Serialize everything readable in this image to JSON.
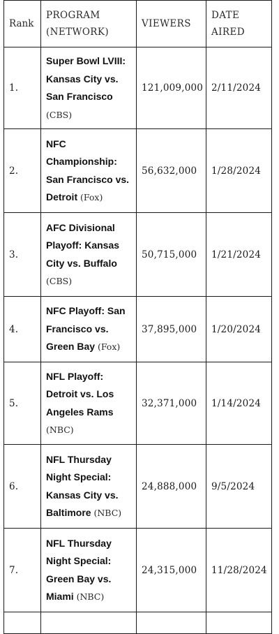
{
  "table": {
    "headers": {
      "rank": "Rank",
      "program": "PROGRAM (NETWORK)",
      "viewers": "VIEWERS",
      "date": "DATE AIRED"
    },
    "rows": [
      {
        "rank": "1.",
        "program": "Super Bowl LVIII: Kansas City vs. San Francisco",
        "network": "(CBS)",
        "viewers": "121,009,000",
        "date": "2/11/2024"
      },
      {
        "rank": "2.",
        "program": "NFC Championship: San Francisco vs. Detroit",
        "network": "(Fox)",
        "viewers": "56,632,000",
        "date": "1/28/2024"
      },
      {
        "rank": "3.",
        "program": "AFC Divisional Playoff: Kansas City vs. Buffalo",
        "network": "(CBS)",
        "viewers": "50,715,000",
        "date": "1/21/2024"
      },
      {
        "rank": "4.",
        "program": "NFC Playoff: San Francisco vs. Green Bay",
        "network": "(Fox)",
        "viewers": "37,895,000",
        "date": "1/20/2024"
      },
      {
        "rank": "5.",
        "program": "NFL Playoff: Detroit vs. Los Angeles Rams",
        "network": "(NBC)",
        "viewers": "32,371,000",
        "date": "1/14/2024"
      },
      {
        "rank": "6.",
        "program": "NFL Thursday Night Special: Kansas City vs. Baltimore",
        "network": "(NBC)",
        "viewers": "24,888,000",
        "date": "9/5/2024"
      },
      {
        "rank": "7.",
        "program": "NFL Thursday Night Special: Green Bay vs. Miami",
        "network": "(NBC)",
        "viewers": "24,315,000",
        "date": "11/28/2024"
      }
    ]
  }
}
